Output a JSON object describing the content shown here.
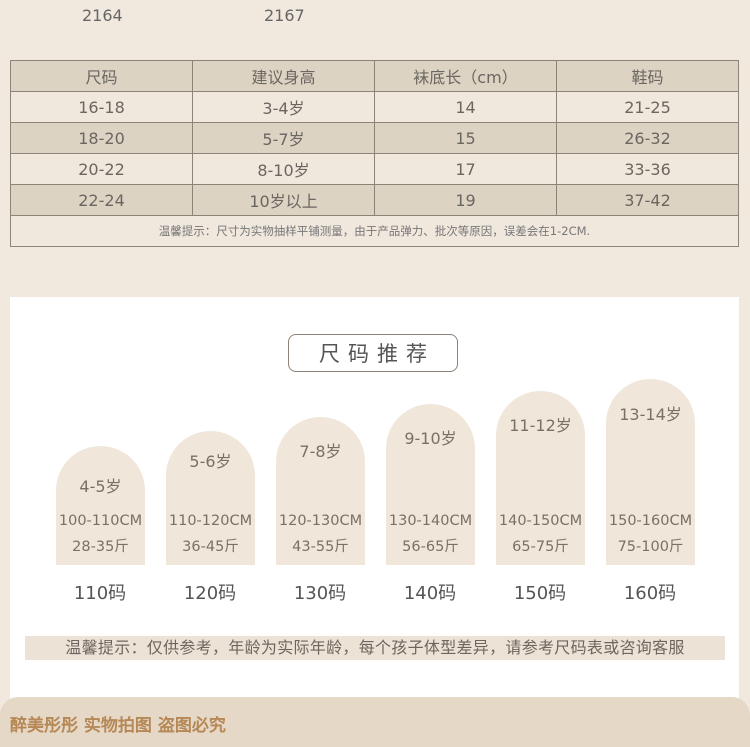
{
  "top_codes": [
    "2164",
    "2167"
  ],
  "size_table": {
    "headers": [
      "尺码",
      "建议身高",
      "袜底长（cm）",
      "鞋码"
    ],
    "rows": [
      [
        "16-18",
        "3-4岁",
        "14",
        "21-25"
      ],
      [
        "18-20",
        "5-7岁",
        "15",
        "26-32"
      ],
      [
        "20-22",
        "8-10岁",
        "17",
        "33-36"
      ],
      [
        "22-24",
        "10岁以上",
        "19",
        "37-42"
      ]
    ],
    "note": "温馨提示：尺寸为实物抽样平铺测量，由于产品弹力、批次等原因，误差会在1-2CM."
  },
  "recommend": {
    "title": "尺码推荐",
    "cards": [
      {
        "age": "4-5岁",
        "height": "100-110CM",
        "weight": "28-35斤",
        "label": "110码"
      },
      {
        "age": "5-6岁",
        "height": "110-120CM",
        "weight": "36-45斤",
        "label": "120码"
      },
      {
        "age": "7-8岁",
        "height": "120-130CM",
        "weight": "43-55斤",
        "label": "130码"
      },
      {
        "age": "9-10岁",
        "height": "130-140CM",
        "weight": "56-65斤",
        "label": "140码"
      },
      {
        "age": "11-12岁",
        "height": "140-150CM",
        "weight": "65-75斤",
        "label": "150码"
      },
      {
        "age": "13-14岁",
        "height": "150-160CM",
        "weight": "75-100斤",
        "label": "160码"
      }
    ],
    "tip": "温馨提示：仅供参考，年龄为实际年龄，每个孩子体型差异，请参考尺码表或咨询客服"
  },
  "footer": {
    "text": "醉美彤彤  实物拍图 盗图必究"
  }
}
